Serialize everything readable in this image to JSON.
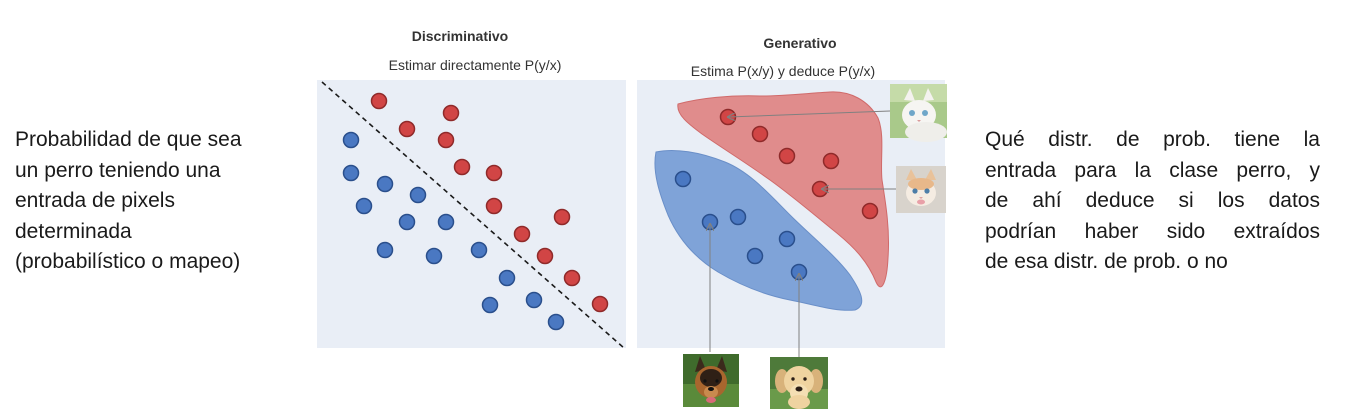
{
  "left_text": {
    "lines": [
      "Probabilidad de que sea",
      "un perro teniendo una",
      "entrada de pixels",
      "determinada",
      "(probabilístico o mapeo)"
    ]
  },
  "right_text": {
    "lines": [
      "Qué distr. de prob. tiene la",
      "entrada para la clase perro, y",
      "de ahí deduce si los datos",
      "podrían haber sido extraídos",
      "de esa distr. de prob. o no"
    ]
  },
  "discriminative": {
    "title": "Discriminativo",
    "subtitle": "Estimar directamente P(y/x)"
  },
  "generative": {
    "title": "Generativo",
    "subtitle": "Estima P(x/y) y deduce P(y/x)"
  },
  "colors": {
    "panel_bg": "#e9eef6",
    "blue_dot": "#4a78c2",
    "red_dot": "#d14545",
    "blue_region": "#7fa3d8",
    "red_region": "#e08c8c",
    "arrow": "#808080"
  },
  "images": {
    "cat_top": "cat-photo",
    "cat_middle": "kitten-photo",
    "dog_left": "german-shepherd-photo",
    "dog_right": "labrador-photo"
  }
}
